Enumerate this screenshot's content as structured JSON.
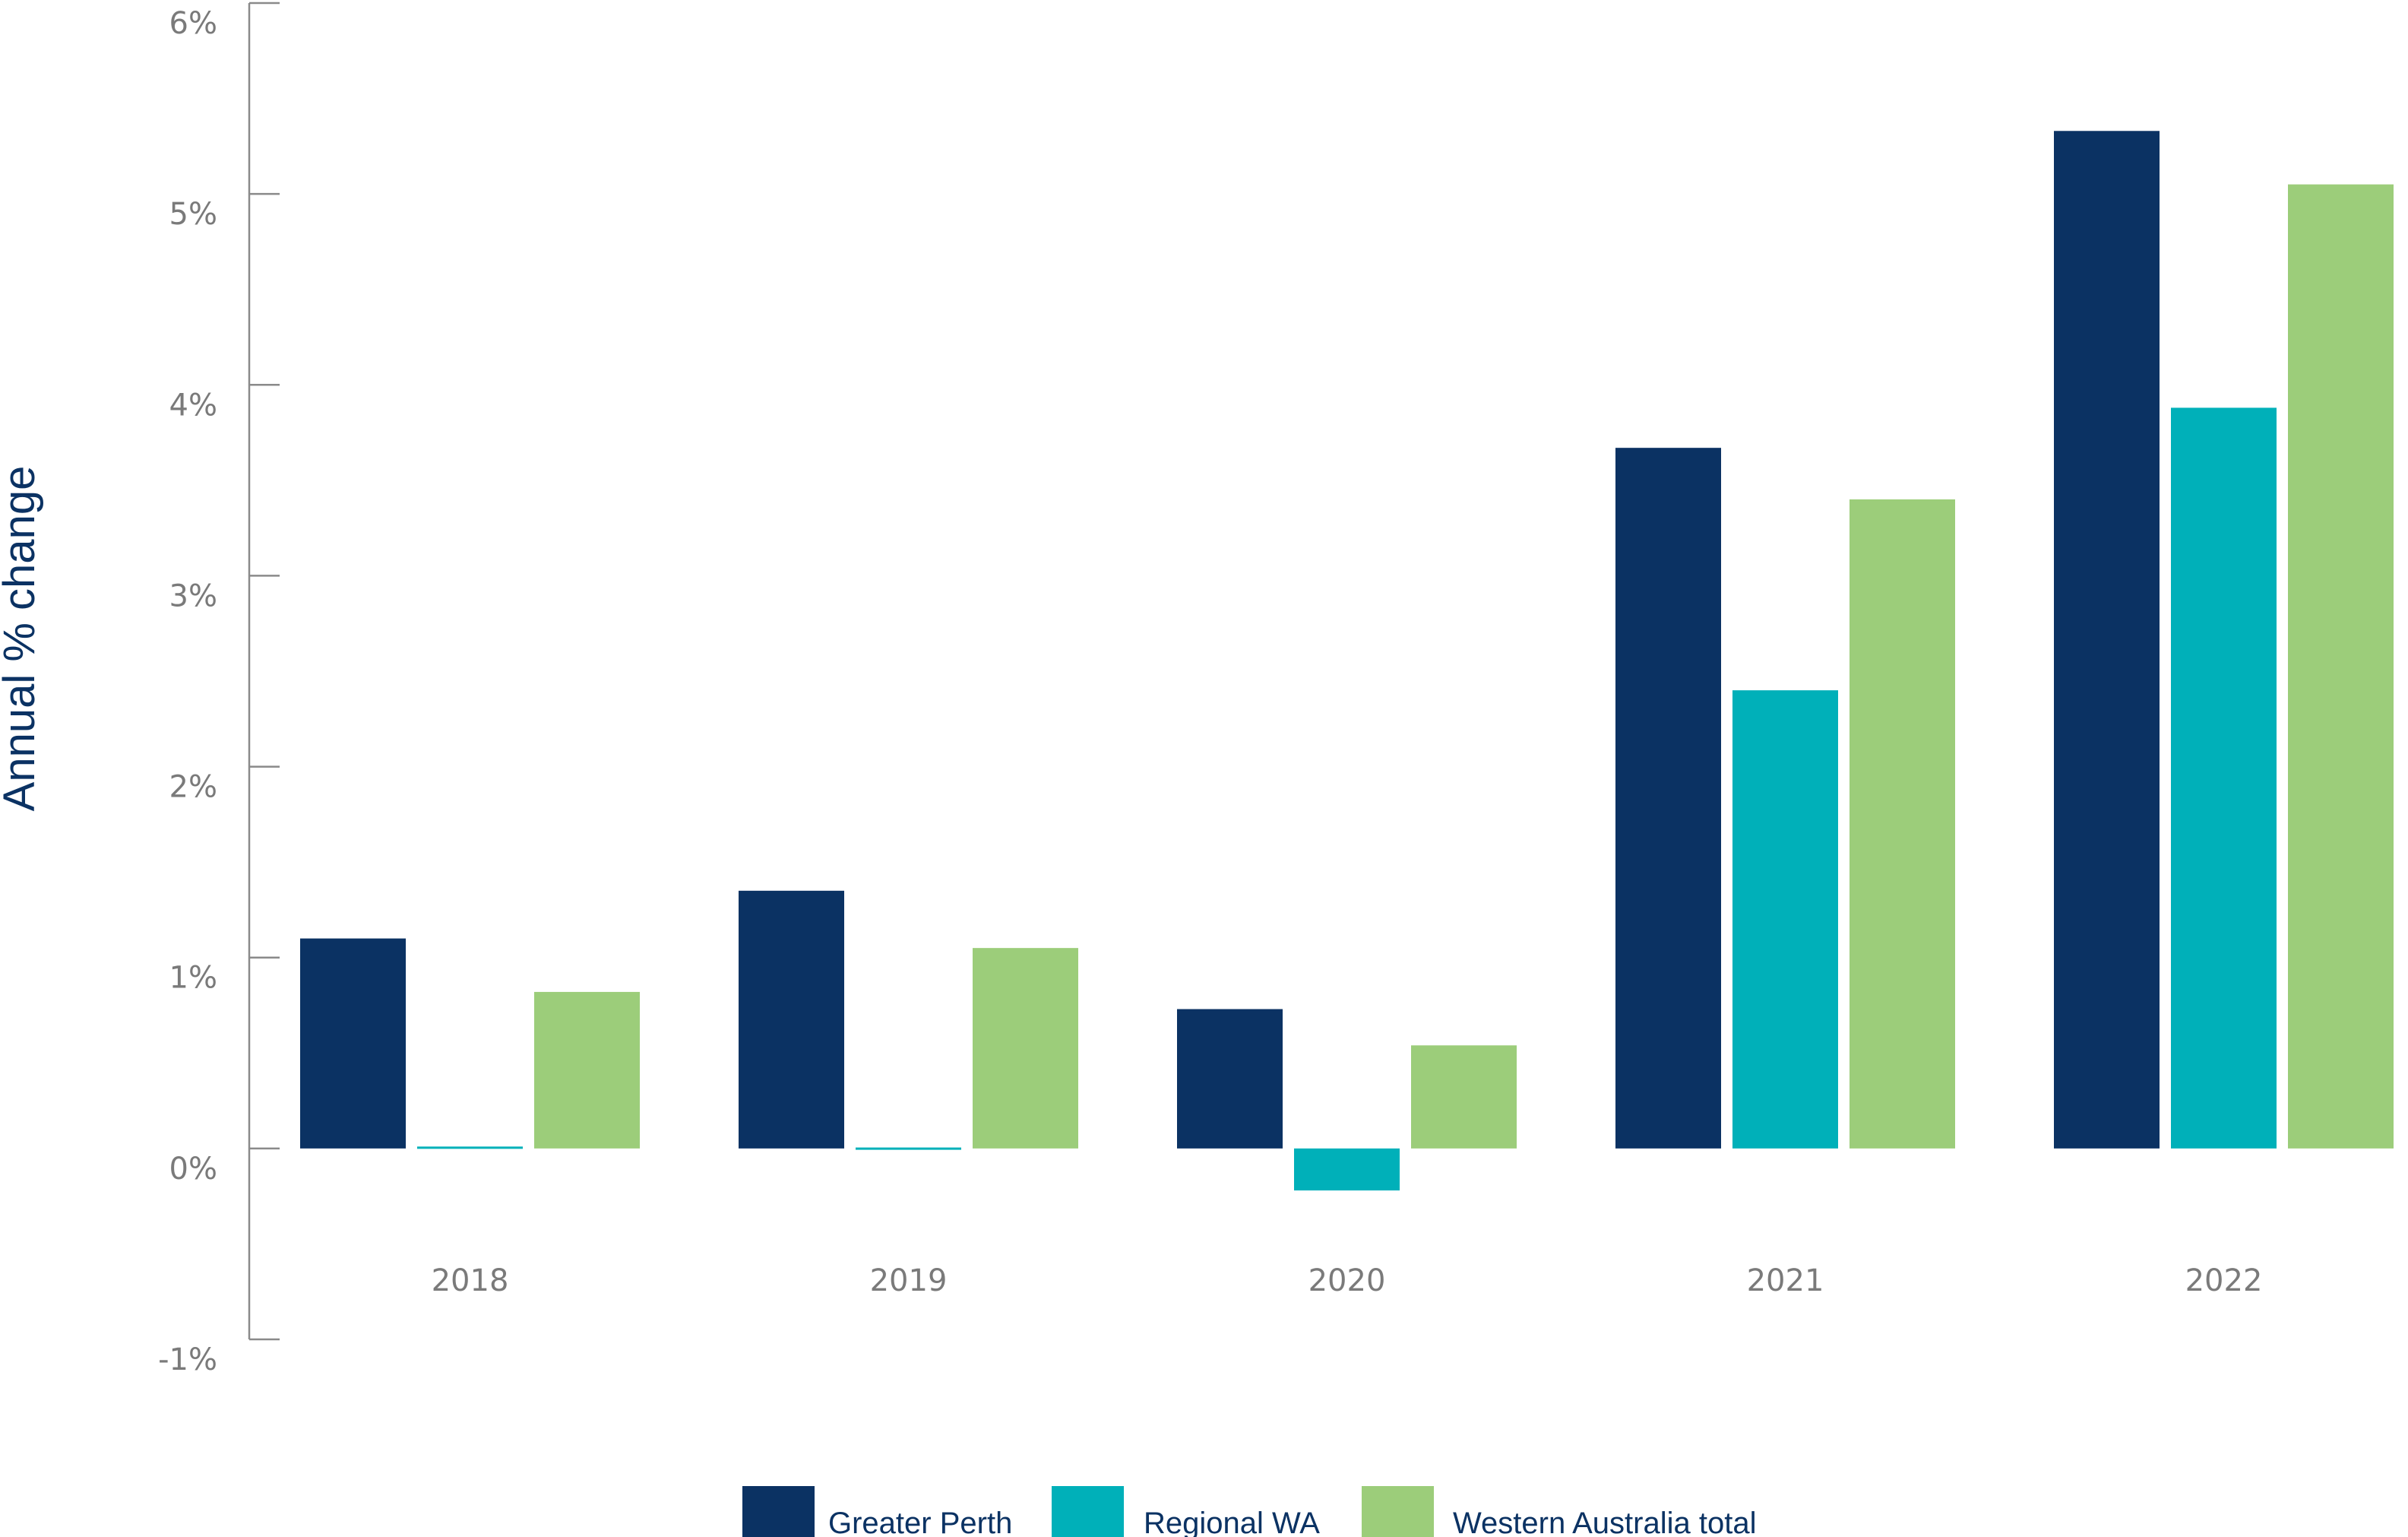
{
  "chart_data": {
    "type": "bar",
    "title": "",
    "xlabel": "",
    "ylabel": "Annual % change",
    "ylim": [
      -1,
      6
    ],
    "yticks": [
      -1,
      0,
      1,
      2,
      3,
      4,
      5,
      6
    ],
    "ytick_labels": [
      "-1%",
      "0%",
      "1%",
      "2%",
      "3%",
      "4%",
      "5%",
      "6%"
    ],
    "categories": [
      "2018",
      "2019",
      "2020",
      "2021",
      "2022"
    ],
    "series": [
      {
        "name": "Greater Perth",
        "color": "#0b3263",
        "values": [
          1.1,
          1.35,
          0.73,
          3.67,
          5.33
        ]
      },
      {
        "name": "Regional WA",
        "color": "#00b0b9",
        "values": [
          0.01,
          0.005,
          -0.22,
          2.4,
          3.88
        ]
      },
      {
        "name": "Western Australia total",
        "color": "#9ccd7a",
        "values": [
          0.82,
          1.05,
          0.54,
          3.4,
          5.05
        ]
      }
    ],
    "grid": false,
    "legend_position": "bottom-center"
  }
}
